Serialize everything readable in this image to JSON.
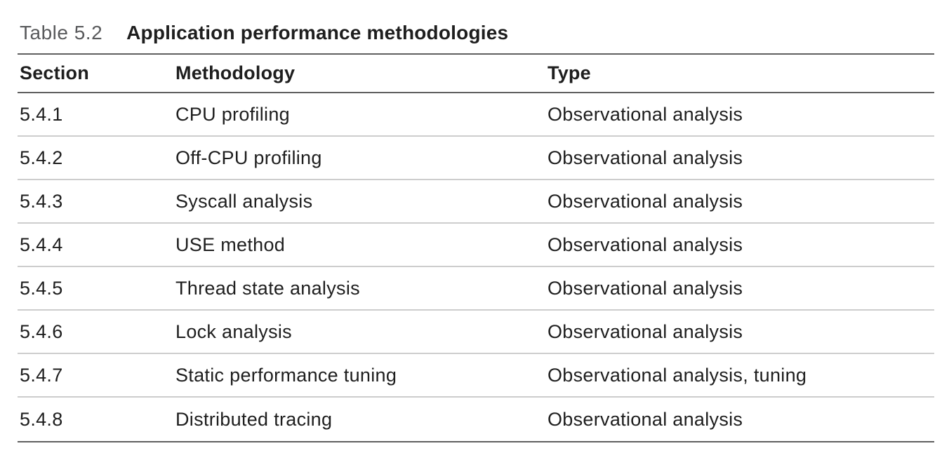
{
  "table": {
    "label": "Table 5.2",
    "title": "Application performance methodologies",
    "columns": [
      "Section",
      "Methodology",
      "Type"
    ],
    "rows": [
      [
        "5.4.1",
        "CPU profiling",
        "Observational analysis"
      ],
      [
        "5.4.2",
        "Off-CPU profiling",
        "Observational analysis"
      ],
      [
        "5.4.3",
        "Syscall analysis",
        "Observational analysis"
      ],
      [
        "5.4.4",
        "USE method",
        "Observational analysis"
      ],
      [
        "5.4.5",
        "Thread state analysis",
        "Observational analysis"
      ],
      [
        "5.4.6",
        "Lock analysis",
        "Observational analysis"
      ],
      [
        "5.4.7",
        "Static performance tuning",
        "Observational analysis, tuning"
      ],
      [
        "5.4.8",
        "Distributed tracing",
        "Observational analysis"
      ]
    ]
  },
  "colors": {
    "text": "#1e1e1e",
    "label_gray": "#595a5c",
    "rule_dark": "#5f5f5f",
    "rule_light": "#cdcdcd",
    "bg": "#ffffff"
  }
}
